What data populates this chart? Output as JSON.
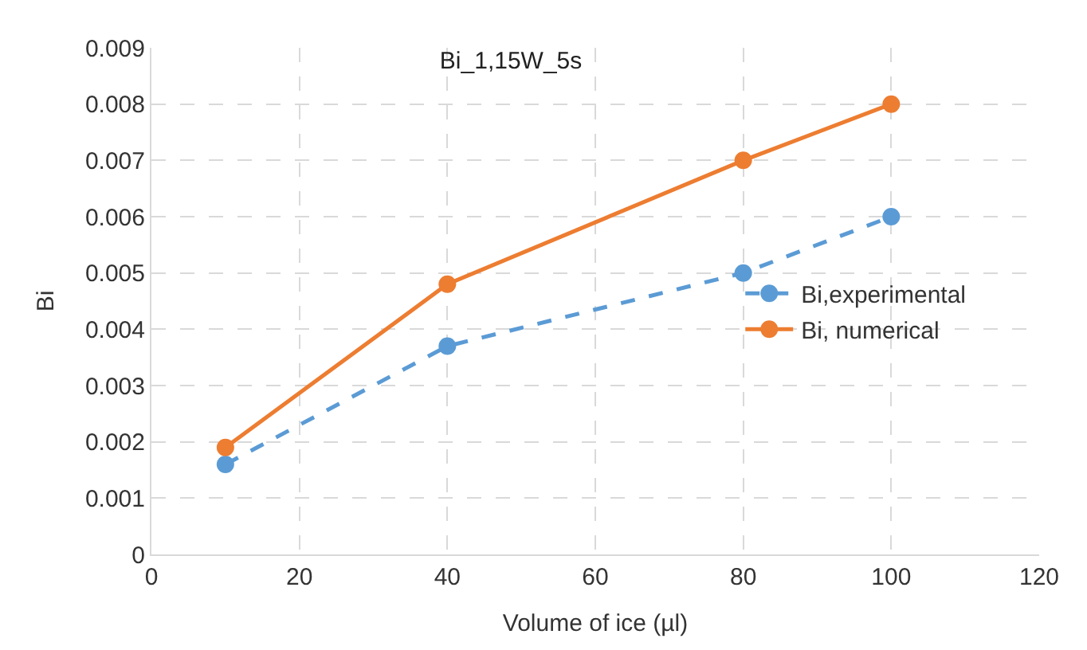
{
  "chart_data": {
    "type": "line",
    "title": "Bi_1,15W_5s",
    "xlabel": "Volume of ice (µl)",
    "ylabel": "Bi",
    "x": [
      10,
      40,
      80,
      100
    ],
    "series": [
      {
        "name": "Bi,experimental",
        "color": "#5b9bd5",
        "values": [
          0.0016,
          0.0037,
          0.005,
          0.006
        ],
        "line_style": "dashed"
      },
      {
        "name": "Bi, numerical",
        "color": "#ed7d31",
        "values": [
          0.0019,
          0.0048,
          0.007,
          0.008
        ],
        "line_style": "solid"
      }
    ],
    "xlim": [
      0,
      120
    ],
    "xticks": [
      0,
      20,
      40,
      60,
      80,
      100,
      120
    ],
    "ylim": [
      0,
      0.009
    ],
    "yticks": [
      {
        "value": 0,
        "label": "0"
      },
      0.001,
      0.002,
      0.003,
      0.004,
      0.005,
      0.006,
      0.007,
      0.008,
      0.009
    ],
    "grid": true,
    "legend": "right",
    "marker": "circle"
  }
}
